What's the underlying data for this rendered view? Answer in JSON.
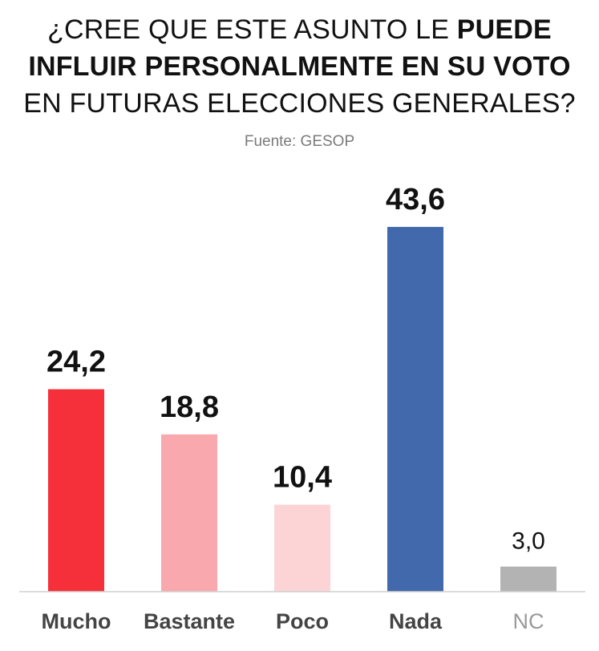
{
  "header": {
    "title_part1": "¿CREE QUE ESTE ASUNTO LE ",
    "title_strong1": "PUEDE",
    "title_strong2": "INFLUIR PERSONALMENTE EN SU VOTO",
    "title_part3": "EN FUTURAS ELECCIONES GENERALES?",
    "source": "Fuente: GESOP"
  },
  "chart_data": {
    "type": "bar",
    "categories": [
      "Mucho",
      "Bastante",
      "Poco",
      "Nada",
      "NC"
    ],
    "values": [
      24.2,
      18.8,
      10.4,
      43.6,
      3.0
    ],
    "value_labels": [
      "24,2",
      "18,8",
      "10,4",
      "43,6",
      "3,0"
    ],
    "colors": [
      "#f5303a",
      "#f9a8ad",
      "#fcd4d6",
      "#4169ac",
      "#b3b3b3"
    ],
    "ylim": [
      0,
      46
    ],
    "grid": false,
    "legend": "none",
    "xlabel": "",
    "ylabel": ""
  }
}
